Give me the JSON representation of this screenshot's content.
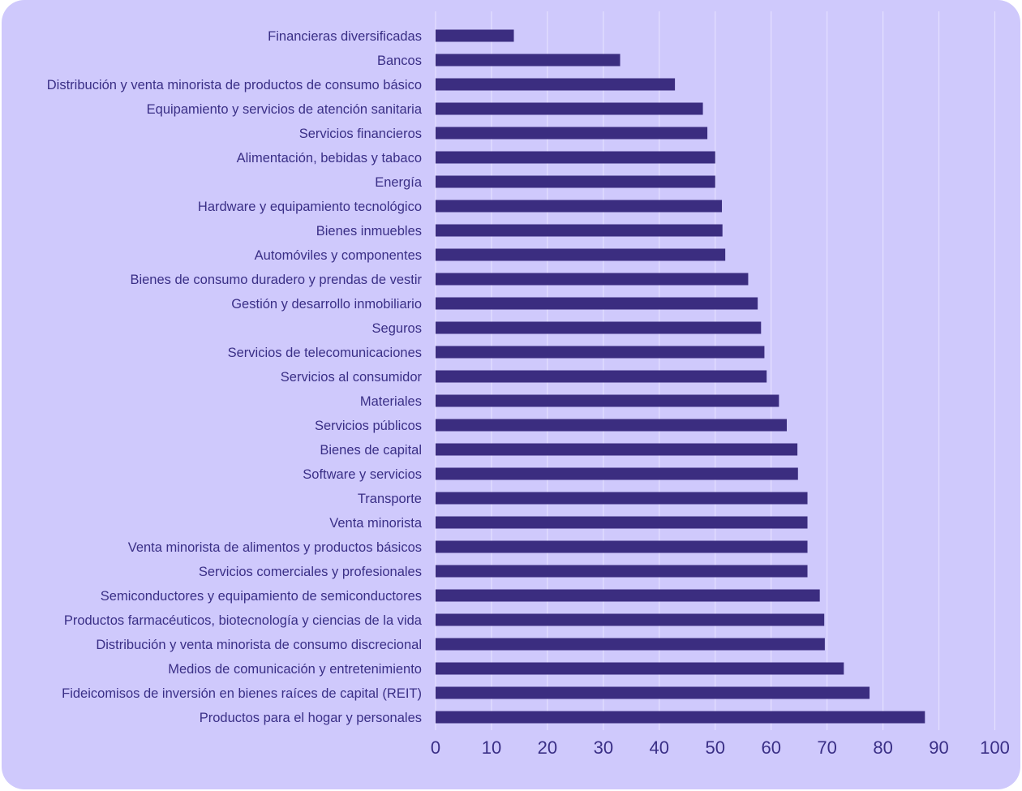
{
  "colors": {
    "background": "#cfc9fc",
    "bar": "#3b2d80",
    "grid": "#e4e0ff",
    "text": "#3a2f86"
  },
  "chart_data": {
    "type": "bar",
    "orientation": "horizontal",
    "title": "",
    "xlabel": "",
    "ylabel": "",
    "xlim": [
      0,
      100
    ],
    "ticks": [
      "0",
      "10",
      "20",
      "30",
      "40",
      "50",
      "60",
      "70",
      "80",
      "90",
      "100"
    ],
    "grid": true,
    "categories": [
      "Financieras diversificadas",
      "Bancos",
      "Distribución y venta minorista de productos de consumo básico",
      "Equipamiento y servicios de atención sanitaria",
      "Servicios financieros",
      "Alimentación, bebidas y tabaco",
      "Energía",
      "Hardware y equipamiento tecnológico",
      "Bienes inmuebles",
      "Automóviles y componentes",
      "Bienes de consumo duradero y prendas de vestir",
      "Gestión y desarrollo inmobiliario",
      "Seguros",
      "Servicios de telecomunicaciones",
      "Servicios al consumidor",
      "Materiales",
      "Servicios públicos",
      "Bienes de capital",
      "Software y servicios",
      "Transporte",
      "Venta minorista",
      "Venta minorista de alimentos y productos básicos",
      "Servicios comerciales y profesionales",
      "Semiconductores y equipamiento de semiconductores",
      "Productos farmacéuticos, biotecnología y ciencias de la vida",
      "Distribución y venta minorista de consumo discrecional",
      "Medios de comunicación y entretenimiento",
      "Fideicomisos de inversión en bienes raíces de capital (REIT)",
      "Productos para el hogar y personales"
    ],
    "values": [
      14,
      33,
      42.8,
      47.8,
      48.6,
      50,
      50,
      51.2,
      51.3,
      51.8,
      55.9,
      57.6,
      58.2,
      58.8,
      59.2,
      61.4,
      62.8,
      64.7,
      64.8,
      66.5,
      66.5,
      66.5,
      66.5,
      68.7,
      69.5,
      69.6,
      73,
      77.6,
      87.5
    ]
  }
}
